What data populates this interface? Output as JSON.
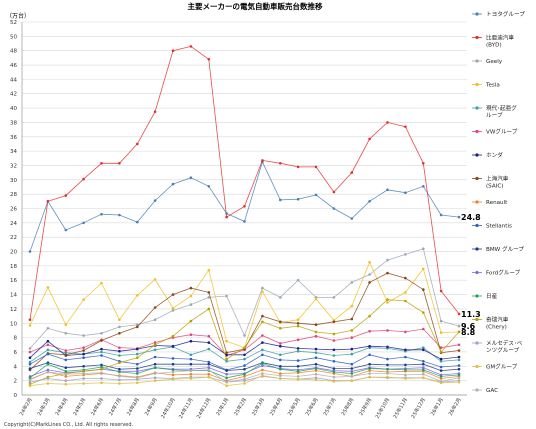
{
  "chart_data": {
    "type": "line",
    "title": "主要メーカーの電気自動車販売台数推移",
    "ylabel": "（万台）",
    "ylim": [
      0,
      52
    ],
    "yticks": [
      0,
      2,
      4,
      6,
      8,
      10,
      12,
      14,
      16,
      18,
      20,
      22,
      24,
      26,
      28,
      30,
      32,
      34,
      36,
      38,
      40,
      42,
      44,
      46,
      48,
      50,
      52
    ],
    "grid": true,
    "legend_position": "right",
    "categories": [
      "24年2月",
      "24年3月",
      "24年4月",
      "24年5月",
      "24年6月",
      "24年7月",
      "24年8月",
      "24年9月",
      "24年10月",
      "24年11月",
      "24年12月",
      "25年1月",
      "25年2月",
      "25年3月",
      "25年4月",
      "25年5月",
      "25年6月",
      "25年7月",
      "25年8月",
      "25年9月",
      "25年10月",
      "25年11月",
      "25年12月",
      "26年1月",
      "26年2月"
    ],
    "series": [
      {
        "name": "トヨタグループ",
        "color": "#4a7fb5",
        "values": [
          20.0,
          27.0,
          23.0,
          24.0,
          25.2,
          25.1,
          24.1,
          27.1,
          29.4,
          30.3,
          29.1,
          25.3,
          24.2,
          32.5,
          27.2,
          27.3,
          27.9,
          26.0,
          24.6,
          27.0,
          28.6,
          28.2,
          29.1,
          25.1,
          24.8
        ]
      },
      {
        "name": "比亜迪汽車\n(BYD)",
        "color": "#e03030",
        "values": [
          10.5,
          27.0,
          27.8,
          30.1,
          32.3,
          32.3,
          35.0,
          39.5,
          48.0,
          48.6,
          46.8,
          24.8,
          26.3,
          32.7,
          32.3,
          31.8,
          31.8,
          28.3,
          31.0,
          35.7,
          38.0,
          37.4,
          32.3,
          14.5,
          11.3
        ]
      },
      {
        "name": "Geely",
        "color": "#9aa6b4",
        "values": [
          6.5,
          9.3,
          8.6,
          8.3,
          8.6,
          9.5,
          9.8,
          10.5,
          11.8,
          12.6,
          13.6,
          13.8,
          8.3,
          14.9,
          13.6,
          16.0,
          13.6,
          13.6,
          15.7,
          16.8,
          18.8,
          19.6,
          20.4,
          10.3,
          9.6
        ]
      },
      {
        "name": "Tesla",
        "color": "#f0c020",
        "values": [
          9.7,
          15.0,
          9.8,
          13.3,
          15.6,
          10.5,
          13.9,
          16.1,
          12.1,
          13.8,
          17.4,
          7.5,
          6.6,
          14.4,
          10.1,
          10.5,
          13.4,
          10.4,
          12.4,
          18.5,
          12.9,
          14.3,
          17.6,
          8.7,
          8.8
        ]
      },
      {
        "name": "現代･起亜グ\nループ",
        "color": "#3aa0a0",
        "values": [
          4.6,
          6.3,
          5.9,
          5.7,
          6.0,
          5.5,
          5.7,
          6.3,
          6.7,
          5.6,
          6.4,
          4.7,
          5.0,
          6.3,
          5.6,
          6.1,
          5.9,
          5.5,
          5.7,
          6.6,
          6.5,
          6.1,
          6.6,
          4.7,
          4.9
        ]
      },
      {
        "name": "VWグループ",
        "color": "#e0457a",
        "values": [
          6.0,
          7.0,
          6.2,
          6.6,
          7.7,
          6.6,
          6.5,
          7.3,
          8.0,
          8.4,
          8.2,
          5.5,
          6.3,
          8.3,
          7.2,
          7.7,
          8.2,
          7.6,
          8.0,
          8.9,
          9.0,
          8.8,
          9.2,
          6.6,
          7.0
        ]
      },
      {
        "name": "ホンダ",
        "color": "#1a1a8c",
        "values": [
          5.2,
          7.5,
          5.5,
          5.7,
          6.4,
          6.1,
          6.4,
          6.9,
          6.8,
          7.5,
          7.3,
          5.6,
          5.6,
          7.3,
          6.8,
          6.5,
          6.4,
          6.3,
          6.4,
          6.8,
          6.7,
          6.3,
          6.3,
          5.0,
          5.3
        ]
      },
      {
        "name": "上海汽車\n(SAIC)",
        "color": "#8b4513",
        "values": [
          3.5,
          5.8,
          5.6,
          6.2,
          7.6,
          8.6,
          9.5,
          12.2,
          14.0,
          14.9,
          14.3,
          5.9,
          6.4,
          11.0,
          10.2,
          10.0,
          9.8,
          10.2,
          10.6,
          15.7,
          17.0,
          16.3,
          14.7,
          5.9,
          6.2
        ]
      },
      {
        "name": "Renault",
        "color": "#f08020",
        "values": [
          2.2,
          3.2,
          2.6,
          2.8,
          3.0,
          2.7,
          2.5,
          3.1,
          2.8,
          2.9,
          2.9,
          2.0,
          2.6,
          3.5,
          3.0,
          3.1,
          3.4,
          3.0,
          2.6,
          3.4,
          3.2,
          3.3,
          3.3,
          2.3,
          2.6
        ]
      },
      {
        "name": "Stellantis",
        "color": "#3060c0",
        "values": [
          4.3,
          5.7,
          4.9,
          5.2,
          5.5,
          4.7,
          4.3,
          5.3,
          5.1,
          5.0,
          4.6,
          3.5,
          4.1,
          5.6,
          4.9,
          4.8,
          5.2,
          4.7,
          4.3,
          5.6,
          5.0,
          5.3,
          4.7,
          3.9,
          4.1
        ]
      },
      {
        "name": "BMW グループ",
        "color": "#1a3a8a",
        "values": [
          3.7,
          4.5,
          3.8,
          4.0,
          4.2,
          3.6,
          3.7,
          4.3,
          4.3,
          4.3,
          4.3,
          3.4,
          3.6,
          4.5,
          4.0,
          4.0,
          4.3,
          3.7,
          3.7,
          4.3,
          4.2,
          4.2,
          4.3,
          3.4,
          3.6
        ]
      },
      {
        "name": "Fordグループ",
        "color": "#7b68ee",
        "values": [
          2.6,
          3.5,
          3.1,
          3.3,
          3.6,
          3.3,
          3.3,
          3.8,
          3.6,
          3.6,
          3.8,
          2.9,
          3.0,
          4.1,
          3.7,
          3.5,
          3.8,
          3.4,
          3.3,
          3.8,
          3.6,
          3.7,
          3.8,
          2.8,
          3.0
        ]
      },
      {
        "name": "日産",
        "color": "#20a060",
        "values": [
          2.4,
          4.3,
          3.3,
          3.5,
          3.9,
          3.2,
          3.0,
          3.8,
          3.5,
          3.4,
          3.4,
          2.4,
          2.9,
          4.4,
          3.6,
          3.3,
          3.7,
          3.2,
          3.0,
          3.7,
          3.6,
          3.5,
          3.5,
          2.6,
          2.8
        ]
      },
      {
        "name": "奇瑞汽車\n(Chery)",
        "color": "#b8a000",
        "values": [
          1.5,
          2.5,
          3.0,
          3.3,
          3.6,
          4.5,
          5.2,
          7.0,
          8.2,
          10.3,
          12.0,
          5.0,
          6.6,
          10.2,
          9.3,
          9.6,
          8.8,
          8.5,
          9.0,
          11.0,
          13.3,
          13.1,
          11.5,
          6.0,
          8.8
        ]
      },
      {
        "name": "メルセデス･ベ\nンツグループ",
        "color": "#a0a0c8",
        "values": [
          1.8,
          2.3,
          2.0,
          2.3,
          2.3,
          2.1,
          2.2,
          2.4,
          2.3,
          2.5,
          2.5,
          1.8,
          2.0,
          2.6,
          2.3,
          2.2,
          2.4,
          2.0,
          2.0,
          2.5,
          2.4,
          2.4,
          2.4,
          1.8,
          2.0
        ]
      },
      {
        "name": "GMグループ",
        "color": "#e0c040",
        "values": [
          1.3,
          1.6,
          1.5,
          1.6,
          1.7,
          1.6,
          1.7,
          2.0,
          2.2,
          2.3,
          2.5,
          1.3,
          1.6,
          2.7,
          2.3,
          2.2,
          2.1,
          1.9,
          2.0,
          2.5,
          2.5,
          2.3,
          2.4,
          1.7,
          1.8
        ]
      },
      {
        "name": "GAC",
        "color": "#b0b0b0",
        "values": [
          2.1,
          3.2,
          2.9,
          3.0,
          3.1,
          2.6,
          2.4,
          3.0,
          3.2,
          3.4,
          3.5,
          1.8,
          2.2,
          3.0,
          2.7,
          2.6,
          2.9,
          2.5,
          2.6,
          3.0,
          3.0,
          2.8,
          2.9,
          1.9,
          2.4
        ]
      }
    ],
    "annotations": [
      {
        "label": "24.8",
        "series": 0,
        "value": 24.8
      },
      {
        "label": "11.3",
        "series": 1,
        "value": 11.3
      },
      {
        "label": "9.6",
        "series": 2,
        "value": 9.6
      },
      {
        "label": "8.8",
        "series": 3,
        "value": 8.8
      }
    ]
  },
  "copyright": "Copyright(C)MarkLines CO., Ltd. All rights reserved."
}
